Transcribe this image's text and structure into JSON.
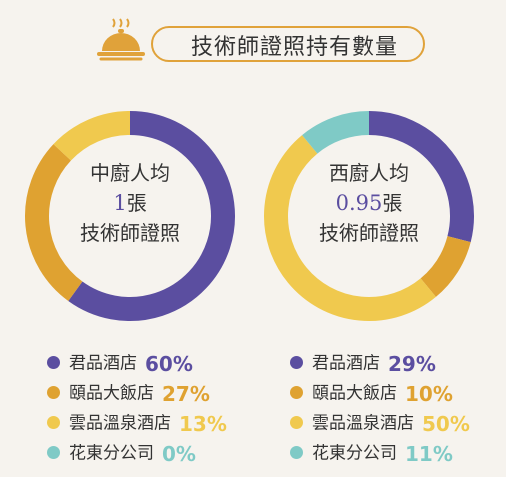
{
  "header": {
    "title": "技術師證照持有數量",
    "icon": "cloche-icon"
  },
  "colors": {
    "junpin": "#5b4ea0",
    "yipin": "#dfa231",
    "yunpin": "#f0c94e",
    "hualien": "#7fcac6"
  },
  "chart_data": [
    {
      "type": "pie",
      "center": {
        "line1": "中廚人均",
        "value": "1",
        "unit": "張",
        "line3": "技術師證照"
      },
      "series": [
        {
          "name": "君品酒店",
          "value": 60,
          "label": "60%",
          "color": "#5b4ea0"
        },
        {
          "name": "頤品大飯店",
          "value": 27,
          "label": "27%",
          "color": "#dfa231"
        },
        {
          "name": "雲品溫泉酒店",
          "value": 13,
          "label": "13%",
          "color": "#f0c94e"
        },
        {
          "name": "花東分公司",
          "value": 0,
          "label": "0%",
          "color": "#7fcac6"
        }
      ]
    },
    {
      "type": "pie",
      "center": {
        "line1": "西廚人均",
        "value": "0.95",
        "unit": "張",
        "line3": "技術師證照"
      },
      "series": [
        {
          "name": "君品酒店",
          "value": 29,
          "label": "29%",
          "color": "#5b4ea0"
        },
        {
          "name": "頤品大飯店",
          "value": 10,
          "label": "10%",
          "color": "#dfa231"
        },
        {
          "name": "雲品溫泉酒店",
          "value": 50,
          "label": "50%",
          "color": "#f0c94e"
        },
        {
          "name": "花東分公司",
          "value": 11,
          "label": "11%",
          "color": "#7fcac6"
        }
      ]
    }
  ]
}
